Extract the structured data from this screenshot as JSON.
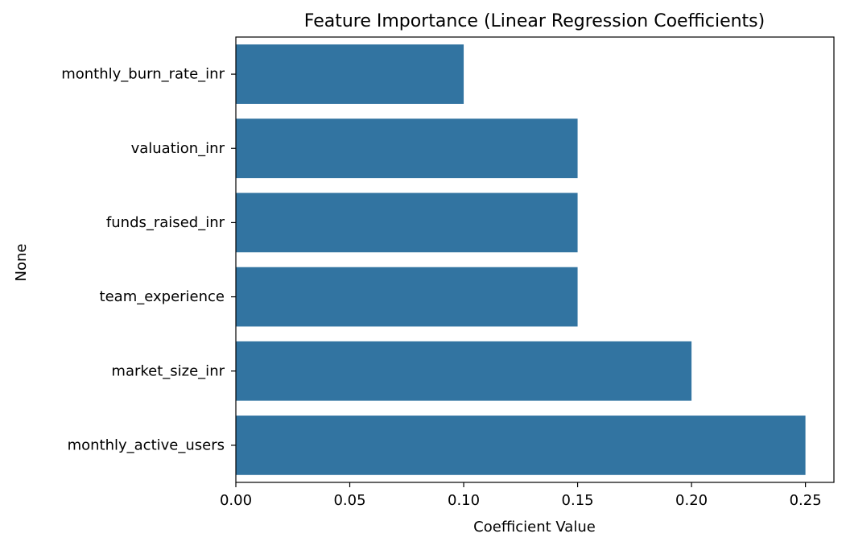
{
  "chart_data": {
    "type": "bar",
    "orientation": "horizontal",
    "title": "Feature Importance (Linear Regression Coefficients)",
    "xlabel": "Coefficient Value",
    "ylabel": "None",
    "categories": [
      "monthly_burn_rate_inr",
      "valuation_inr",
      "funds_raised_inr",
      "team_experience",
      "market_size_inr",
      "monthly_active_users"
    ],
    "values": [
      0.1,
      0.15,
      0.15,
      0.15,
      0.2,
      0.25
    ],
    "xlim": [
      0.0,
      0.2625
    ],
    "xticks": [
      "0.00",
      "0.05",
      "0.10",
      "0.15",
      "0.20",
      "0.25"
    ],
    "xtick_values": [
      0.0,
      0.05,
      0.1,
      0.15,
      0.2,
      0.25
    ],
    "bar_color": "#3274a1",
    "grid": false,
    "legend": "none"
  }
}
